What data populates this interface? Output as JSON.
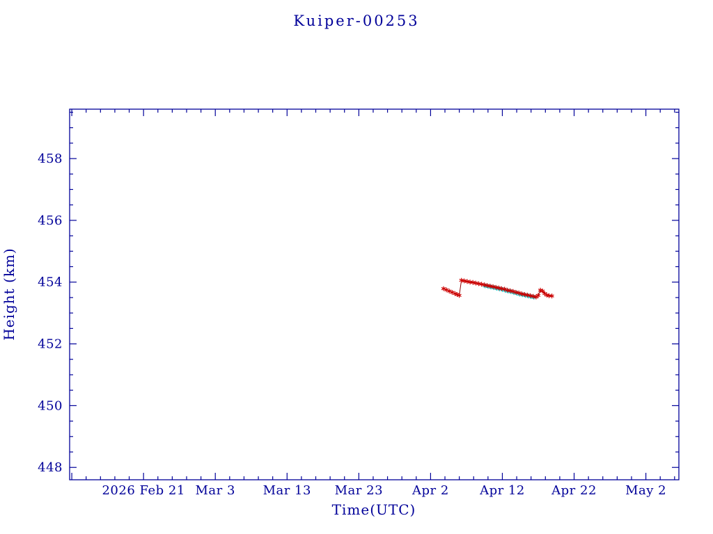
{
  "colors": {
    "axis": "#000099",
    "background": "#ffffff",
    "red_marker": "#cc0000",
    "red_line": "#8b0000",
    "cyan_marker": "#00cccc"
  },
  "chart_data": {
    "type": "scatter",
    "title": "Kuiper-00253",
    "xlabel": "Time(UTC)",
    "ylabel": "Height (km)",
    "x_unit": "days since 2026 Feb 21 (first x tick)",
    "x_domain": [
      -10.3,
      74.6
    ],
    "y_domain": [
      447.6,
      459.6
    ],
    "x_major_ticks": [
      {
        "day": 0,
        "label": "2026 Feb 21"
      },
      {
        "day": 10,
        "label": "Mar  3"
      },
      {
        "day": 20,
        "label": "Mar 13"
      },
      {
        "day": 30,
        "label": "Mar 23"
      },
      {
        "day": 40,
        "label": "Apr  2"
      },
      {
        "day": 50,
        "label": "Apr 12"
      },
      {
        "day": 60,
        "label": "Apr 22"
      },
      {
        "day": 70,
        "label": "May  2"
      }
    ],
    "x_minor_step": 2,
    "y_major_ticks": [
      448,
      450,
      452,
      454,
      456,
      458
    ],
    "y_minor_step": 0.5,
    "grid": false,
    "legend": "none",
    "series": [
      {
        "name": "cyan-series",
        "marker": "asterisk",
        "color": "#00cccc",
        "connect": false,
        "points": [
          [
            47.6,
            453.88
          ],
          [
            48.0,
            453.86
          ],
          [
            48.4,
            453.84
          ],
          [
            48.8,
            453.82
          ],
          [
            49.2,
            453.8
          ],
          [
            49.6,
            453.78
          ],
          [
            50.0,
            453.76
          ],
          [
            50.4,
            453.73
          ],
          [
            50.8,
            453.71
          ],
          [
            51.2,
            453.69
          ],
          [
            51.6,
            453.66
          ],
          [
            52.0,
            453.64
          ],
          [
            52.4,
            453.61
          ],
          [
            52.8,
            453.59
          ],
          [
            53.2,
            453.57
          ],
          [
            53.6,
            453.55
          ],
          [
            54.0,
            453.53
          ],
          [
            54.4,
            453.51
          ]
        ]
      },
      {
        "name": "red-series",
        "marker": "asterisk",
        "color": "#cc0000",
        "line_color": "#8b0000",
        "connect": true,
        "points": [
          [
            41.8,
            453.79
          ],
          [
            42.2,
            453.75
          ],
          [
            42.6,
            453.71
          ],
          [
            43.0,
            453.67
          ],
          [
            43.4,
            453.63
          ],
          [
            43.7,
            453.6
          ],
          [
            44.0,
            453.57
          ],
          [
            44.3,
            454.06
          ],
          [
            44.7,
            454.04
          ],
          [
            45.1,
            454.02
          ],
          [
            45.5,
            454.0
          ],
          [
            45.9,
            453.99
          ],
          [
            46.3,
            453.97
          ],
          [
            46.7,
            453.95
          ],
          [
            47.1,
            453.93
          ],
          [
            47.5,
            453.91
          ],
          [
            47.9,
            453.89
          ],
          [
            48.3,
            453.87
          ],
          [
            48.7,
            453.85
          ],
          [
            49.1,
            453.83
          ],
          [
            49.5,
            453.81
          ],
          [
            49.9,
            453.79
          ],
          [
            50.3,
            453.77
          ],
          [
            50.7,
            453.74
          ],
          [
            51.1,
            453.72
          ],
          [
            51.5,
            453.7
          ],
          [
            51.9,
            453.67
          ],
          [
            52.3,
            453.65
          ],
          [
            52.7,
            453.62
          ],
          [
            53.1,
            453.6
          ],
          [
            53.5,
            453.58
          ],
          [
            53.9,
            453.56
          ],
          [
            54.3,
            453.54
          ],
          [
            54.7,
            453.52
          ],
          [
            55.0,
            453.57
          ],
          [
            55.3,
            453.74
          ],
          [
            55.6,
            453.71
          ],
          [
            55.9,
            453.63
          ],
          [
            56.2,
            453.58
          ],
          [
            56.5,
            453.56
          ],
          [
            56.9,
            453.55
          ]
        ]
      }
    ]
  }
}
